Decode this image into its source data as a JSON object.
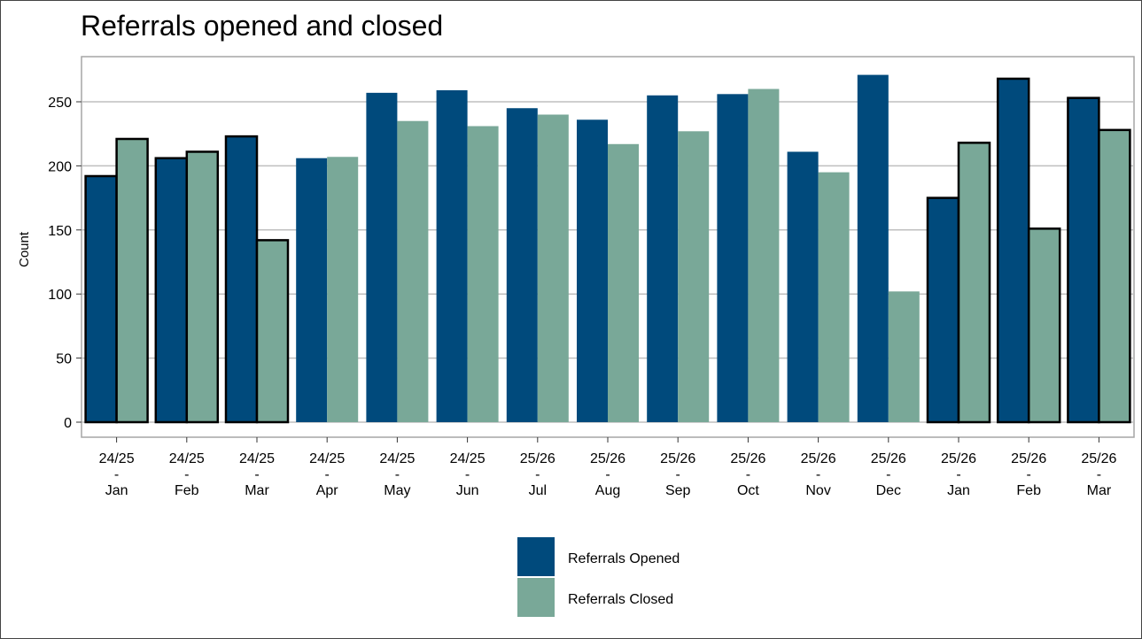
{
  "chart_data": {
    "type": "bar",
    "title": "Referrals opened and closed",
    "xlabel": "",
    "ylabel": "Count",
    "ylim": [
      0,
      285
    ],
    "yticks": [
      0,
      50,
      100,
      150,
      200,
      250
    ],
    "grid": true,
    "legend_position": "bottom",
    "categories": [
      {
        "line1": "24/25",
        "line2": "-",
        "line3": "Jan"
      },
      {
        "line1": "24/25",
        "line2": "-",
        "line3": "Feb"
      },
      {
        "line1": "24/25",
        "line2": "-",
        "line3": "Mar"
      },
      {
        "line1": "24/25",
        "line2": "-",
        "line3": "Apr"
      },
      {
        "line1": "24/25",
        "line2": "-",
        "line3": "May"
      },
      {
        "line1": "24/25",
        "line2": "-",
        "line3": "Jun"
      },
      {
        "line1": "25/26",
        "line2": "-",
        "line3": "Jul"
      },
      {
        "line1": "25/26",
        "line2": "-",
        "line3": "Aug"
      },
      {
        "line1": "25/26",
        "line2": "-",
        "line3": "Sep"
      },
      {
        "line1": "25/26",
        "line2": "-",
        "line3": "Oct"
      },
      {
        "line1": "25/26",
        "line2": "-",
        "line3": "Nov"
      },
      {
        "line1": "25/26",
        "line2": "-",
        "line3": "Dec"
      },
      {
        "line1": "25/26",
        "line2": "-",
        "line3": "Jan"
      },
      {
        "line1": "25/26",
        "line2": "-",
        "line3": "Feb"
      },
      {
        "line1": "25/26",
        "line2": "-",
        "line3": "Mar"
      }
    ],
    "highlighted": [
      true,
      true,
      true,
      false,
      false,
      false,
      false,
      false,
      false,
      false,
      false,
      false,
      true,
      true,
      true
    ],
    "series": [
      {
        "name": "Referrals Opened",
        "color": "#004a7c",
        "values": [
          192,
          206,
          223,
          206,
          257,
          259,
          245,
          236,
          255,
          256,
          211,
          271,
          175,
          268,
          253
        ]
      },
      {
        "name": "Referrals Closed",
        "color": "#79a898",
        "values": [
          221,
          211,
          142,
          207,
          235,
          231,
          240,
          217,
          227,
          260,
          195,
          102,
          218,
          151,
          228
        ]
      }
    ]
  }
}
